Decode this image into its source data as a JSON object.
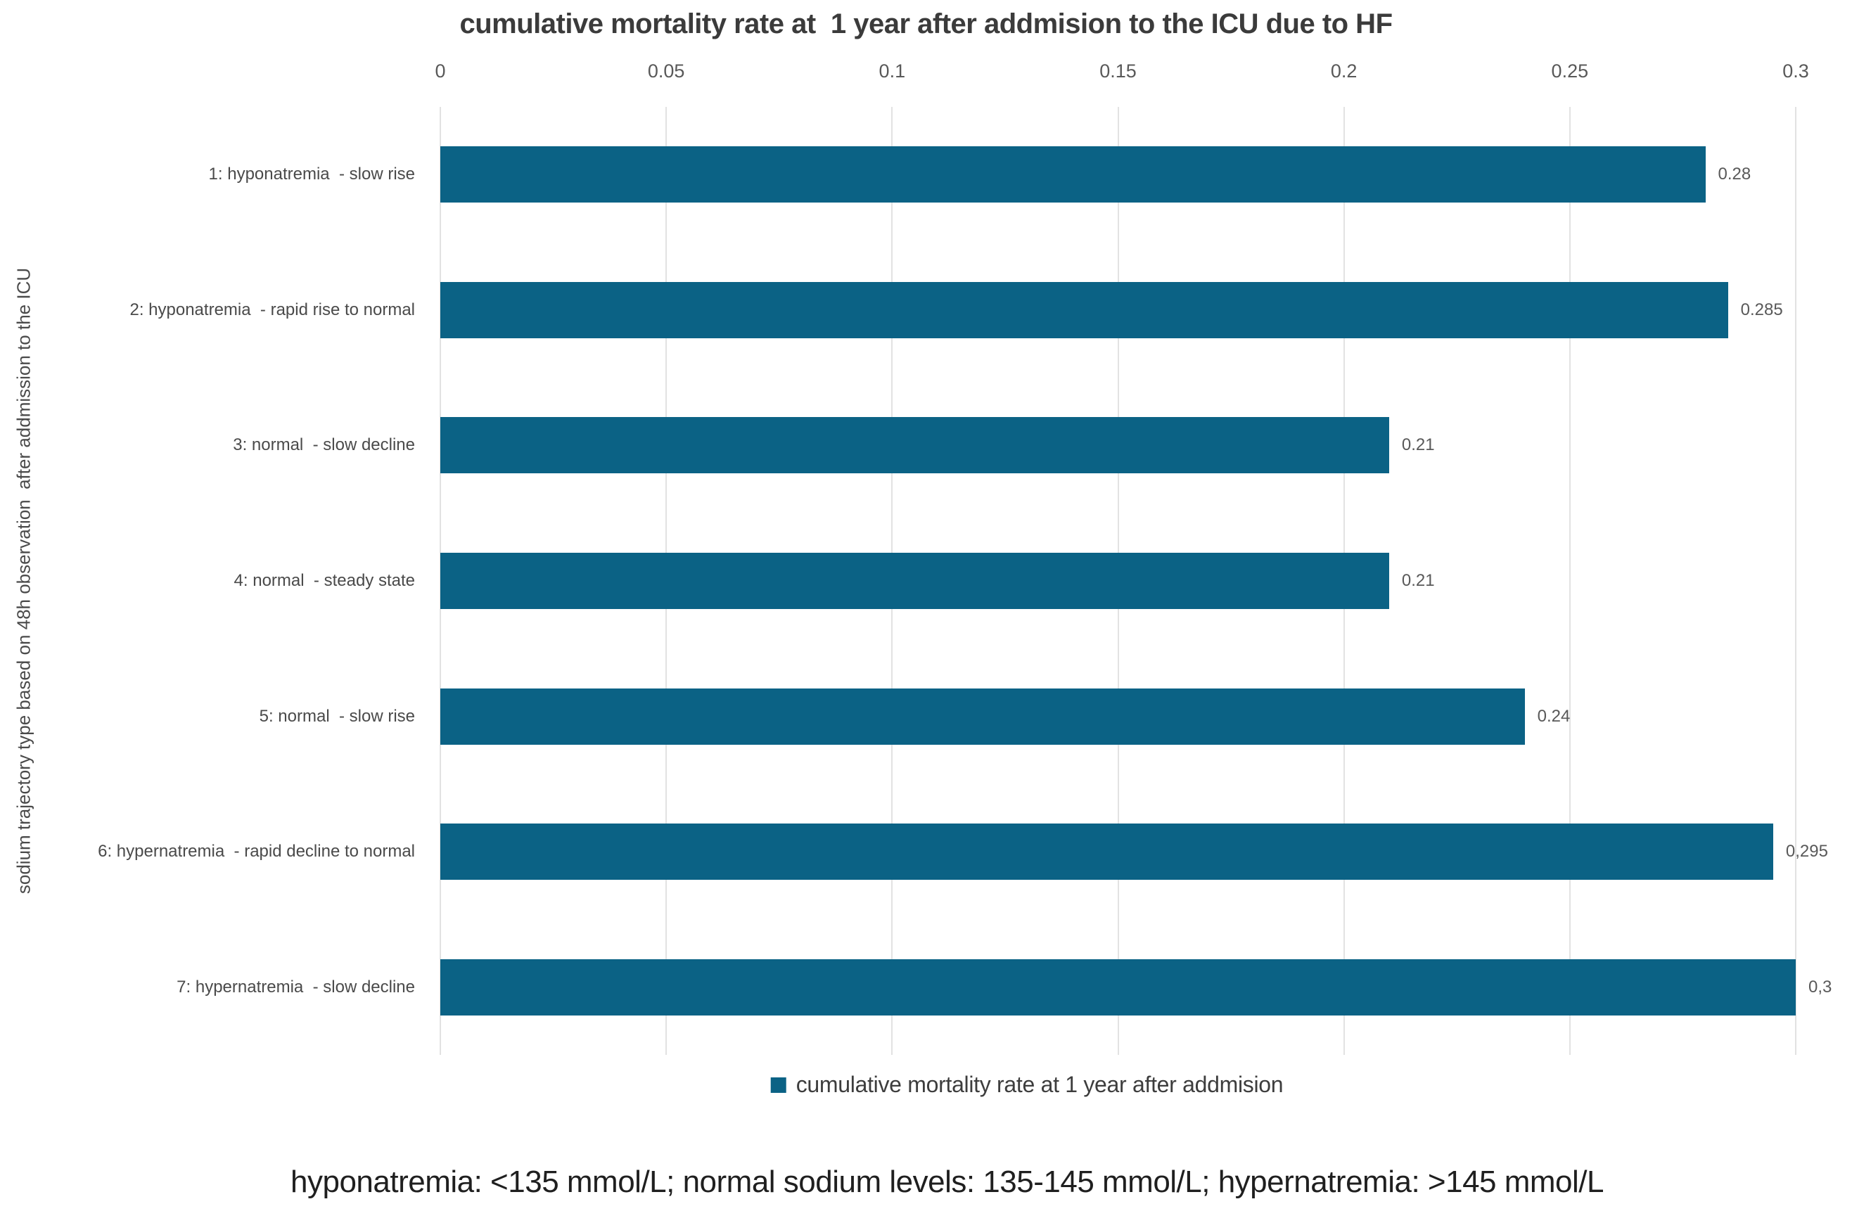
{
  "chart_data": {
    "type": "bar",
    "orientation": "horizontal",
    "title": "cumulative mortality rate at  1 year after addmision to the ICU due to HF",
    "xlabel": "",
    "ylabel": "sodium trajectory type based on 48h observation  after addmission to the ICU",
    "categories": [
      "1: hyponatremia  - slow rise",
      "2: hyponatremia  - rapid rise to normal",
      "3: normal  - slow decline",
      "4: normal  - steady state",
      "5: normal  - slow rise",
      "6: hypernatremia  - rapid decline to normal",
      "7: hypernatremia  - slow decline"
    ],
    "values": [
      0.28,
      0.285,
      0.21,
      0.21,
      0.24,
      0.295,
      0.3
    ],
    "value_labels": [
      "0.28",
      "0.285",
      "0.21",
      "0.21",
      "0.24",
      "0,295",
      "0,3"
    ],
    "xlim": [
      0,
      0.3
    ],
    "x_ticks": [
      {
        "value": 0,
        "label": "0"
      },
      {
        "value": 0.05,
        "label": "0.05"
      },
      {
        "value": 0.1,
        "label": "0.1"
      },
      {
        "value": 0.15,
        "label": "0.15"
      },
      {
        "value": 0.2,
        "label": "0.2"
      },
      {
        "value": 0.25,
        "label": "0.25"
      },
      {
        "value": 0.3,
        "label": "0.3"
      }
    ],
    "grid": true,
    "legend": {
      "position": "bottom",
      "label": "cumulative mortality rate at 1 year after addmision"
    },
    "colors": {
      "bar": "#0b6285",
      "gridline": "#e2e2e2",
      "axis_text": "#595959",
      "title_text": "#3b3b3b",
      "note_text": "#1f1f1f"
    }
  },
  "footnote": "hyponatremia: <135 mmol/L; normal sodium levels: 135-145 mmol/L; hypernatremia: >145 mmol/L"
}
